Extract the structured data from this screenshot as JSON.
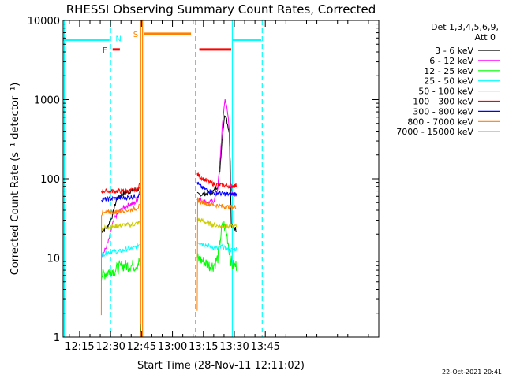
{
  "chart_data": {
    "type": "line",
    "title": "RHESSI Observing Summary Count Rates, Corrected",
    "xlabel": "Start Time (28-Nov-11 12:11:02)",
    "ylabel": "Corrected Count Rate (s⁻¹ detector⁻¹)",
    "yscale": "log",
    "ylim": [
      1,
      10000
    ],
    "xlim_min": [
      727,
      880
    ],
    "y_ticks": [
      {
        "v": 1,
        "label": "1"
      },
      {
        "v": 10,
        "label": "10"
      },
      {
        "v": 100,
        "label": "100"
      },
      {
        "v": 1000,
        "label": "1000"
      },
      {
        "v": 10000,
        "label": "10000"
      }
    ],
    "x_ticks": [
      {
        "t": 735,
        "label": "12:15"
      },
      {
        "t": 750,
        "label": "12:30"
      },
      {
        "t": 765,
        "label": "12:45"
      },
      {
        "t": 780,
        "label": "13:00"
      },
      {
        "t": 795,
        "label": "13:15"
      },
      {
        "t": 810,
        "label": "13:30"
      },
      {
        "t": 825,
        "label": "13:45"
      }
    ],
    "legend": {
      "header1": "Det 1,3,4,5,6,9,",
      "header2": "Att 0",
      "placement": "right"
    },
    "series": [
      {
        "name": "3 - 6 keV",
        "color": "#000000",
        "segments": [
          [
            [
              745.5,
              22
            ],
            [
              747,
              23
            ],
            [
              748.5,
              25
            ],
            [
              750,
              30
            ],
            [
              751,
              35
            ],
            [
              752,
              45
            ],
            [
              753,
              55
            ],
            [
              754,
              60
            ],
            [
              756,
              65
            ],
            [
              758,
              68
            ],
            [
              760,
              70
            ],
            [
              762,
              72
            ],
            [
              764,
              75
            ]
          ],
          [
            [
              792,
              63
            ],
            [
              795,
              64
            ],
            [
              798,
              66
            ],
            [
              800,
              70
            ],
            [
              802,
              82
            ],
            [
              803,
              130
            ],
            [
              804,
              300
            ],
            [
              805,
              550
            ],
            [
              805.5,
              650
            ],
            [
              806,
              620
            ],
            [
              807,
              450
            ],
            [
              807.5,
              380
            ],
            [
              808,
              160
            ],
            [
              808.5,
              25
            ],
            [
              811,
              23
            ]
          ]
        ]
      },
      {
        "name": "6 - 12 keV",
        "color": "#ff00ff",
        "segments": [
          [
            [
              745.5,
              11
            ],
            [
              747,
              12
            ],
            [
              748.5,
              15
            ],
            [
              749.5,
              18
            ],
            [
              750.5,
              24
            ],
            [
              752,
              32
            ],
            [
              754,
              38
            ],
            [
              756,
              42
            ],
            [
              758,
              46
            ],
            [
              760,
              48
            ],
            [
              762,
              50
            ],
            [
              763,
              55
            ],
            [
              764,
              70
            ]
          ],
          [
            [
              792,
              55
            ],
            [
              795,
              52
            ],
            [
              798,
              50
            ],
            [
              800,
              53
            ],
            [
              801,
              60
            ],
            [
              802,
              78
            ],
            [
              803,
              160
            ],
            [
              804,
              400
            ],
            [
              805,
              800
            ],
            [
              805.5,
              1000
            ],
            [
              806,
              900
            ],
            [
              807,
              600
            ],
            [
              807.5,
              420
            ],
            [
              808,
              90
            ],
            [
              809,
              62
            ],
            [
              811,
              64
            ]
          ]
        ]
      },
      {
        "name": "12 - 25 keV",
        "color": "#00ff00",
        "segments": [
          [
            [
              745.5,
              6
            ],
            [
              748,
              6.5
            ],
            [
              750,
              7
            ],
            [
              752,
              7
            ],
            [
              754,
              7.5
            ],
            [
              756,
              8
            ],
            [
              758,
              8
            ],
            [
              760,
              8
            ],
            [
              762,
              8
            ],
            [
              763,
              8.5
            ],
            [
              764,
              9
            ]
          ],
          [
            [
              792,
              10
            ],
            [
              795,
              9
            ],
            [
              798,
              8
            ],
            [
              800,
              8
            ],
            [
              802,
              10
            ],
            [
              803,
              16
            ],
            [
              804,
              24
            ],
            [
              805,
              26
            ],
            [
              806,
              22
            ],
            [
              807,
              16
            ],
            [
              808,
              10
            ],
            [
              809,
              8
            ],
            [
              811,
              8
            ]
          ]
        ]
      },
      {
        "name": "25 - 50 keV",
        "color": "#00ffff",
        "segments": [
          [
            [
              745.5,
              11
            ],
            [
              748,
              11.5
            ],
            [
              750,
              12
            ],
            [
              752,
              12
            ],
            [
              754,
              12
            ],
            [
              756,
              12.5
            ],
            [
              758,
              13
            ],
            [
              760,
              13
            ],
            [
              762,
              13.5
            ],
            [
              763,
              14
            ],
            [
              764,
              15
            ]
          ],
          [
            [
              792,
              16
            ],
            [
              795,
              15
            ],
            [
              798,
              14
            ],
            [
              800,
              13.5
            ],
            [
              802,
              13
            ],
            [
              804,
              14
            ],
            [
              806,
              13
            ],
            [
              808,
              12.5
            ],
            [
              811,
              13
            ]
          ]
        ]
      },
      {
        "name": "50 - 100 keV",
        "color": "#cccc00",
        "segments": [
          [
            [
              745.5,
              24
            ],
            [
              748,
              24
            ],
            [
              750,
              25
            ],
            [
              752,
              25
            ],
            [
              754,
              25.5
            ],
            [
              756,
              26
            ],
            [
              758,
              26
            ],
            [
              760,
              26
            ],
            [
              762,
              27
            ],
            [
              764,
              28
            ]
          ],
          [
            [
              792,
              31
            ],
            [
              795,
              29
            ],
            [
              798,
              27
            ],
            [
              800,
              26
            ],
            [
              802,
              25.5
            ],
            [
              804,
              25
            ],
            [
              806,
              25
            ],
            [
              808,
              25
            ],
            [
              811,
              25
            ]
          ]
        ]
      },
      {
        "name": "100 - 300 keV",
        "color": "#ff0000",
        "segments": [
          [
            [
              745.5,
              70
            ],
            [
              748,
              70
            ],
            [
              750,
              70
            ],
            [
              752,
              70
            ],
            [
              754,
              70
            ],
            [
              756,
              70
            ],
            [
              758,
              70
            ],
            [
              760,
              71
            ],
            [
              762,
              72
            ],
            [
              763,
              75
            ],
            [
              764,
              85
            ]
          ],
          [
            [
              792,
              115
            ],
            [
              793,
              108
            ],
            [
              795,
              100
            ],
            [
              798,
              90
            ],
            [
              800,
              86
            ],
            [
              802,
              84
            ],
            [
              804,
              83
            ],
            [
              806,
              82
            ],
            [
              808,
              81
            ],
            [
              811,
              82
            ]
          ]
        ]
      },
      {
        "name": "300 - 800 keV",
        "color": "#0000ff",
        "segments": [
          [
            [
              745.5,
              55
            ],
            [
              748,
              55
            ],
            [
              750,
              56
            ],
            [
              752,
              56
            ],
            [
              754,
              57
            ],
            [
              756,
              57
            ],
            [
              758,
              58
            ],
            [
              760,
              59
            ],
            [
              762,
              60
            ],
            [
              764,
              62
            ]
          ],
          [
            [
              792,
              90
            ],
            [
              793,
              82
            ],
            [
              795,
              75
            ],
            [
              798,
              70
            ],
            [
              800,
              67
            ],
            [
              802,
              66
            ],
            [
              804,
              65
            ],
            [
              806,
              64
            ],
            [
              808,
              64
            ],
            [
              811,
              64
            ]
          ]
        ]
      },
      {
        "name": "800 - 7000 keV",
        "color": "#ff8000",
        "segments": [
          [
            [
              745.5,
              2
            ],
            [
              745.6,
              36
            ],
            [
              748,
              37
            ],
            [
              750,
              38
            ],
            [
              752,
              38
            ],
            [
              754,
              39
            ],
            [
              756,
              40
            ],
            [
              758,
              40
            ],
            [
              760,
              41
            ],
            [
              762,
              42
            ],
            [
              764,
              45
            ]
          ],
          [
            [
              792,
              2
            ],
            [
              792.2,
              55
            ],
            [
              793,
              52
            ],
            [
              795,
              50
            ],
            [
              798,
              48
            ],
            [
              800,
              47
            ],
            [
              802,
              46
            ],
            [
              804,
              45
            ],
            [
              806,
              44
            ],
            [
              808,
              44
            ],
            [
              811,
              44
            ]
          ]
        ]
      },
      {
        "name": "7000 - 15000 keV",
        "color": "#808000",
        "segments": [
          [
            [
              764.3,
              1.1
            ],
            [
              764.5,
              1.5
            ],
            [
              764.7,
              1.2
            ]
          ]
        ]
      }
    ],
    "flags": [
      {
        "label": "",
        "color": "#00ffff",
        "y": 5700,
        "t0": 727,
        "t1": 749.5
      },
      {
        "label": "N",
        "color": "#00ffff",
        "y": 6000,
        "t0": 750,
        "t1": 750,
        "label_only": true
      },
      {
        "label": "F",
        "color": "#ff0000",
        "y": 4300,
        "t0": 751,
        "t1": 754.5
      },
      {
        "label": "S",
        "color": "#ff8000",
        "y": 6800,
        "t0": 766,
        "t1": 789
      },
      {
        "label": "",
        "color": "#ff0000",
        "y": 4300,
        "t0": 793,
        "t1": 808.5
      },
      {
        "label": "",
        "color": "#00ffff",
        "y": 5700,
        "t0": 809,
        "t1": 823
      }
    ],
    "vlines": [
      {
        "t": 727.6,
        "color": "#00ffff",
        "dashed": false
      },
      {
        "t": 750,
        "color": "#00ffff",
        "dashed": true
      },
      {
        "t": 764.6,
        "color": "#ff8000",
        "dashed": false
      },
      {
        "t": 765.5,
        "color": "#ff8000",
        "dashed": false
      },
      {
        "t": 791.2,
        "color": "#ff8000",
        "dashed": true
      },
      {
        "t": 809,
        "color": "#00ffff",
        "dashed": false
      },
      {
        "t": 823.5,
        "color": "#00ffff",
        "dashed": true
      }
    ]
  },
  "footer_date": "22-Oct-2021 20:41"
}
